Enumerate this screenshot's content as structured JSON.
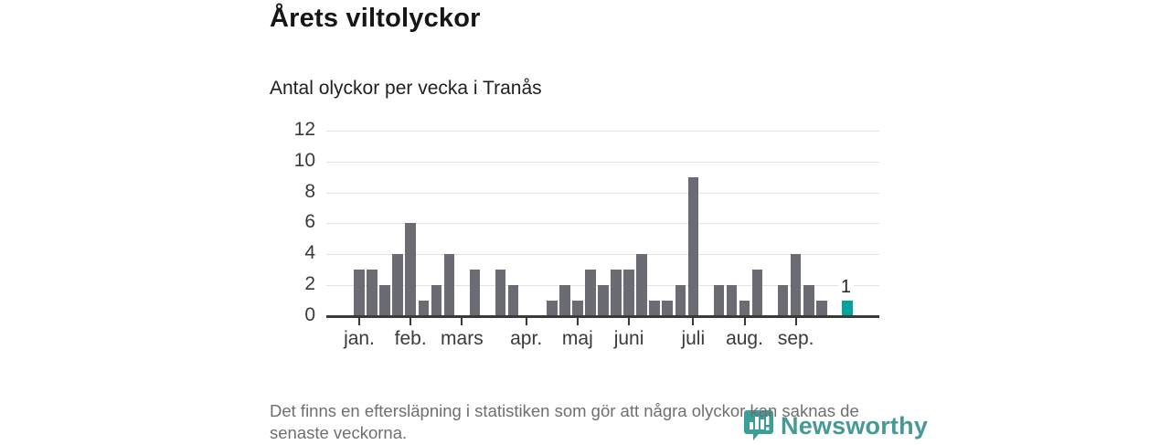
{
  "header": {
    "title": "Årets viltolyckor",
    "subtitle": "Antal olyckor per vecka i Tranås"
  },
  "footer": {
    "footnote_line1": "Det finns en eftersläpning i statistiken som gör att några olyckor kan saknas de",
    "footnote_line2": "senaste veckorna.",
    "logo_text": "Newsworthy"
  },
  "chart_data": {
    "type": "bar",
    "title": "Årets viltolyckor",
    "subtitle": "Antal olyckor per vecka i Tranås",
    "x_unit": "week",
    "values": [
      3,
      3,
      2,
      4,
      6,
      1,
      2,
      4,
      0,
      3,
      0,
      3,
      2,
      0,
      0,
      1,
      2,
      1,
      3,
      2,
      3,
      3,
      4,
      1,
      1,
      2,
      9,
      0,
      2,
      2,
      1,
      3,
      0,
      2,
      4,
      2,
      1,
      0,
      1
    ],
    "month_ticks": [
      {
        "label": "jan.",
        "week": 1
      },
      {
        "label": "feb.",
        "week": 5
      },
      {
        "label": "mars",
        "week": 9
      },
      {
        "label": "apr.",
        "week": 14
      },
      {
        "label": "maj",
        "week": 18
      },
      {
        "label": "juni",
        "week": 22
      },
      {
        "label": "juli",
        "week": 27
      },
      {
        "label": "aug.",
        "week": 31
      },
      {
        "label": "sep.",
        "week": 35
      }
    ],
    "y_ticks": [
      0,
      2,
      4,
      6,
      8,
      10,
      12
    ],
    "ylim": [
      0,
      12
    ],
    "grid": true,
    "legend": "none",
    "highlight_last": true,
    "last_value_label": "1",
    "colors": {
      "bar": "#6b6b73",
      "highlight": "#00a39e",
      "grid": "#e2e2e2",
      "axis": "#3a3a3a",
      "logo": "#459a99"
    }
  }
}
